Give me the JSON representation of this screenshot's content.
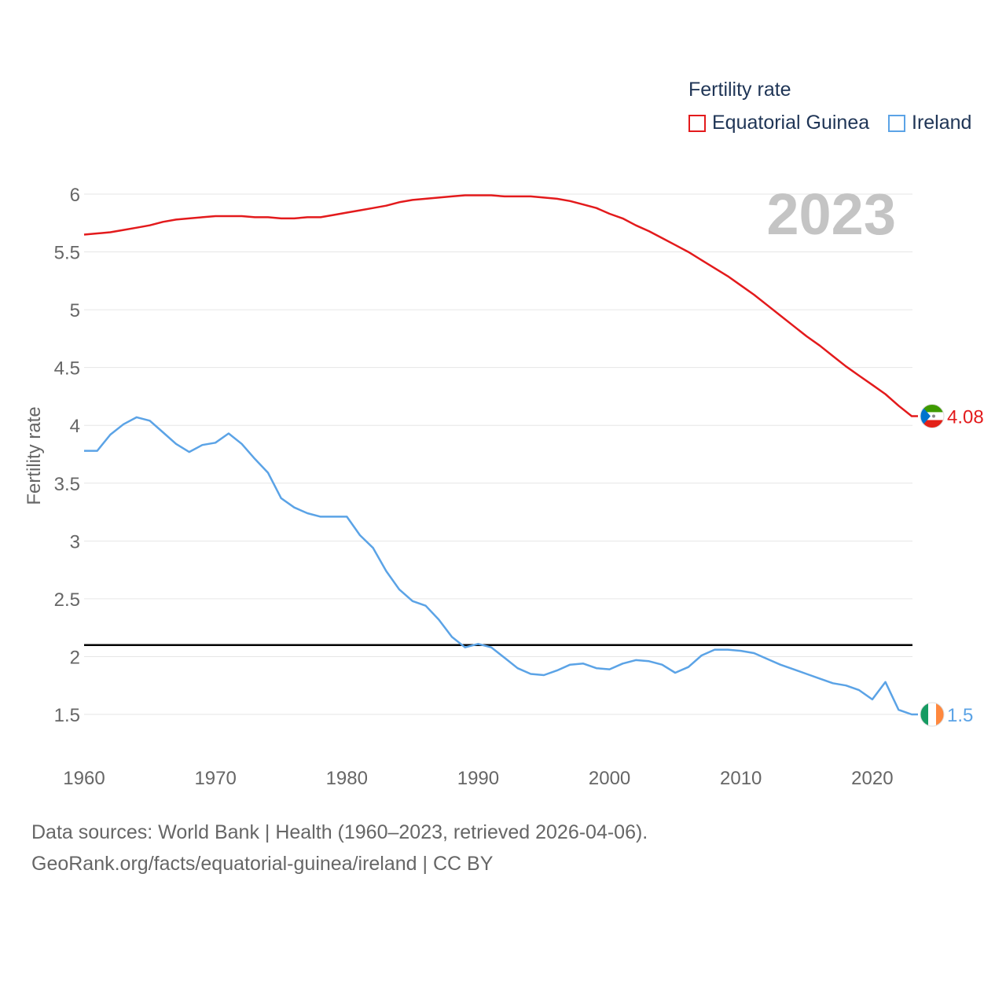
{
  "legend": {
    "title": "Fertility rate",
    "items": [
      {
        "name": "Equatorial Guinea",
        "color": "#e31a1c"
      },
      {
        "name": "Ireland",
        "color": "#5ba3e6"
      }
    ]
  },
  "footer": {
    "line1": "Data sources: World Bank | Health (1960–2023, retrieved 2026-04-06).",
    "line2": "GeoRank.org/facts/equatorial-guinea/ireland | CC BY"
  },
  "chart_data": {
    "type": "line",
    "title": "Fertility rate",
    "year_label": "2023",
    "xlabel": "",
    "ylabel": "Fertility rate",
    "xlim": [
      1960,
      2023
    ],
    "ylim": [
      1.2,
      6.2
    ],
    "x_ticks": [
      1960,
      1970,
      1980,
      1990,
      2000,
      2010,
      2020
    ],
    "y_ticks": [
      1.5,
      2,
      2.5,
      3,
      3.5,
      4,
      4.5,
      5,
      5.5,
      6
    ],
    "grid": true,
    "reference_line": {
      "y": 2.1,
      "color": "#000000"
    },
    "x": [
      1960,
      1961,
      1962,
      1963,
      1964,
      1965,
      1966,
      1967,
      1968,
      1969,
      1970,
      1971,
      1972,
      1973,
      1974,
      1975,
      1976,
      1977,
      1978,
      1979,
      1980,
      1981,
      1982,
      1983,
      1984,
      1985,
      1986,
      1987,
      1988,
      1989,
      1990,
      1991,
      1992,
      1993,
      1994,
      1995,
      1996,
      1997,
      1998,
      1999,
      2000,
      2001,
      2002,
      2003,
      2004,
      2005,
      2006,
      2007,
      2008,
      2009,
      2010,
      2011,
      2012,
      2013,
      2014,
      2015,
      2016,
      2017,
      2018,
      2019,
      2020,
      2021,
      2022,
      2023
    ],
    "series": [
      {
        "name": "Equatorial Guinea",
        "color": "#e31a1c",
        "end_label": "4.08",
        "values": [
          5.65,
          5.66,
          5.67,
          5.69,
          5.71,
          5.73,
          5.76,
          5.78,
          5.79,
          5.8,
          5.81,
          5.81,
          5.81,
          5.8,
          5.8,
          5.79,
          5.79,
          5.8,
          5.8,
          5.82,
          5.84,
          5.86,
          5.88,
          5.9,
          5.93,
          5.95,
          5.96,
          5.97,
          5.98,
          5.99,
          5.99,
          5.99,
          5.98,
          5.98,
          5.98,
          5.97,
          5.96,
          5.94,
          5.91,
          5.88,
          5.83,
          5.79,
          5.73,
          5.68,
          5.62,
          5.56,
          5.5,
          5.43,
          5.36,
          5.29,
          5.21,
          5.13,
          5.04,
          4.95,
          4.86,
          4.77,
          4.69,
          4.6,
          4.51,
          4.43,
          4.35,
          4.27,
          4.17,
          4.08
        ]
      },
      {
        "name": "Ireland",
        "color": "#5ba3e6",
        "end_label": "1.5",
        "values": [
          3.78,
          3.78,
          3.92,
          4.01,
          4.07,
          4.04,
          3.94,
          3.84,
          3.77,
          3.83,
          3.85,
          3.93,
          3.84,
          3.71,
          3.59,
          3.37,
          3.29,
          3.24,
          3.21,
          3.21,
          3.21,
          3.05,
          2.94,
          2.74,
          2.58,
          2.48,
          2.44,
          2.32,
          2.17,
          2.08,
          2.11,
          2.08,
          1.99,
          1.9,
          1.85,
          1.84,
          1.88,
          1.93,
          1.94,
          1.9,
          1.89,
          1.94,
          1.97,
          1.96,
          1.93,
          1.86,
          1.91,
          2.01,
          2.06,
          2.06,
          2.05,
          2.03,
          1.98,
          1.93,
          1.89,
          1.85,
          1.81,
          1.77,
          1.75,
          1.71,
          1.63,
          1.78,
          1.54,
          1.5
        ]
      }
    ]
  }
}
